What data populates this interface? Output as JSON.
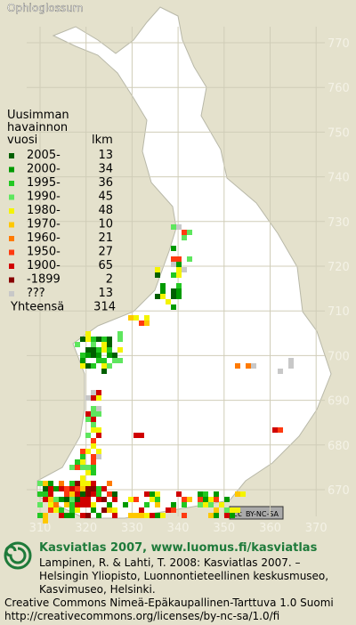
{
  "title": "Ophioglossum",
  "legend": {
    "header": [
      "Uusimman",
      "havainnon",
      "vuosi"
    ],
    "count_header": "lkm",
    "rows": [
      {
        "label": "2005-",
        "count": "13",
        "color": "#005f00"
      },
      {
        "label": "2000-",
        "count": "34",
        "color": "#009a00"
      },
      {
        "label": "1995-",
        "count": "36",
        "color": "#22c822"
      },
      {
        "label": "1990-",
        "count": "45",
        "color": "#5ee65e"
      },
      {
        "label": "1980-",
        "count": "48",
        "color": "#f4f400"
      },
      {
        "label": "1970-",
        "count": "10",
        "color": "#ffc800"
      },
      {
        "label": "1960-",
        "count": "21",
        "color": "#ff7a00"
      },
      {
        "label": "1950-",
        "count": "27",
        "color": "#ff3a10"
      },
      {
        "label": "1900-",
        "count": "65",
        "color": "#d00000"
      },
      {
        "label": "-1899",
        "count": "2",
        "color": "#880000"
      },
      {
        "label": "???",
        "count": "13",
        "color": "#c8c8c8"
      }
    ],
    "total_label": "Yhteensä",
    "total": "314"
  },
  "grid_y_labels": [
    "770",
    "760",
    "750",
    "740",
    "730",
    "720",
    "710",
    "700",
    "690",
    "680",
    "670"
  ],
  "grid_x_labels": [
    "310",
    "320",
    "330",
    "340",
    "350",
    "360",
    "370"
  ],
  "badge": {
    "cc": "cc",
    "text": "BY-NC-SA"
  },
  "footer": {
    "heading": "Kasviatlas 2007, www.luomus.fi/kasviatlas",
    "citation": [
      "Lampinen, R. & Lahti, T. 2008: Kasviatlas 2007. –",
      "Helsingin Yliopisto, Luonnontieteellinen keskusmuseo,",
      "Kasvimuseo, Helsinki."
    ],
    "license": [
      "Creative Commons Nimeä-Epäkaupallinen-Tarttuva 1.0 Suomi",
      "http://creativecommons.org/licenses/by-nc-sa/1.0/fi"
    ]
  }
}
